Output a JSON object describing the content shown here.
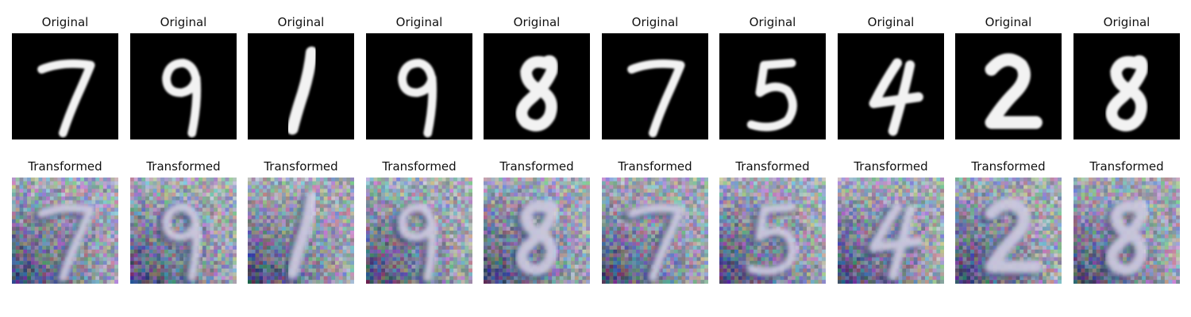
{
  "figure": {
    "rows": [
      {
        "name": "original",
        "panels": [
          {
            "title": "Original",
            "digit": "7"
          },
          {
            "title": "Original",
            "digit": "9"
          },
          {
            "title": "Original",
            "digit": "1"
          },
          {
            "title": "Original",
            "digit": "9"
          },
          {
            "title": "Original",
            "digit": "8"
          },
          {
            "title": "Original",
            "digit": "7"
          },
          {
            "title": "Original",
            "digit": "5"
          },
          {
            "title": "Original",
            "digit": "4"
          },
          {
            "title": "Original",
            "digit": "2"
          },
          {
            "title": "Original",
            "digit": "8"
          }
        ]
      },
      {
        "name": "transformed",
        "panels": [
          {
            "title": "Transformed",
            "digit": "7"
          },
          {
            "title": "Transformed",
            "digit": "9"
          },
          {
            "title": "Transformed",
            "digit": "1"
          },
          {
            "title": "Transformed",
            "digit": "9"
          },
          {
            "title": "Transformed",
            "digit": "8"
          },
          {
            "title": "Transformed",
            "digit": "7"
          },
          {
            "title": "Transformed",
            "digit": "5"
          },
          {
            "title": "Transformed",
            "digit": "4"
          },
          {
            "title": "Transformed",
            "digit": "2"
          },
          {
            "title": "Transformed",
            "digit": "8"
          }
        ]
      }
    ],
    "colors": {
      "original_background": "#000000",
      "original_stroke": "#f2f2f2",
      "transformed_background": "#8e9ea6",
      "transformed_stroke": "#d8d4e8",
      "title_text": "#111111"
    }
  }
}
